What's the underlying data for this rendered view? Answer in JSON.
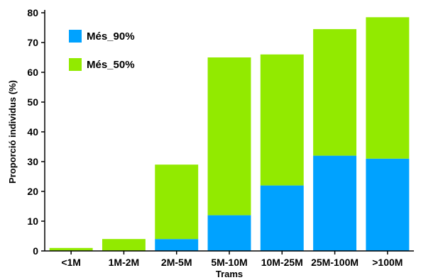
{
  "chart_data": {
    "type": "bar",
    "stacked": true,
    "categories": [
      "<1M",
      "1M-2M",
      "2M-5M",
      "5M-10M",
      "10M-25M",
      "25M-100M",
      ">100M"
    ],
    "series": [
      {
        "name": "Més_90%",
        "color": "#00a2ff",
        "values": [
          0,
          0,
          4,
          12,
          22,
          32,
          31
        ]
      },
      {
        "name": "Més_50%",
        "color": "#92ea00",
        "values": [
          1,
          4,
          25,
          53,
          44,
          42.5,
          47.5
        ]
      }
    ],
    "totals": [
      1,
      4,
      29,
      65,
      66,
      74.5,
      78.5
    ],
    "xlabel": "Trams",
    "ylabel": "Proporció individus (%)",
    "ylim": [
      0,
      80
    ],
    "yticks": [
      0,
      10,
      20,
      30,
      40,
      50,
      60,
      70,
      80
    ],
    "grid": false,
    "legend_position": "top-left"
  }
}
